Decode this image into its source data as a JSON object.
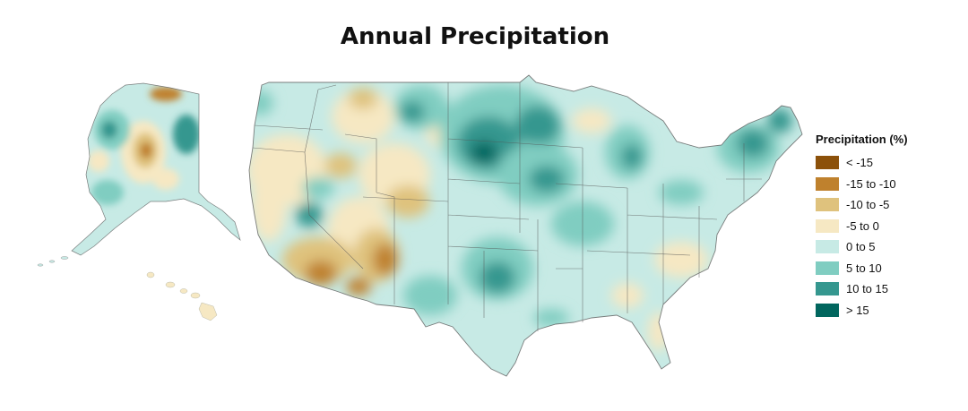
{
  "title": "Annual Precipitation",
  "legend": {
    "title": "Precipitation (%)",
    "items": [
      {
        "label": "< -15",
        "color": "#8c510a"
      },
      {
        "label": "-15 to -10",
        "color": "#bf812d"
      },
      {
        "label": "-10 to -5",
        "color": "#dfc27d"
      },
      {
        "label": "-5 to 0",
        "color": "#f6e8c3"
      },
      {
        "label": "0 to 5",
        "color": "#c7eae5"
      },
      {
        "label": "5 to 10",
        "color": "#80cdc1"
      },
      {
        "label": "10 to 15",
        "color": "#35978f"
      },
      {
        "label": "> 15",
        "color": "#01665e"
      }
    ]
  },
  "regions": [
    "Contiguous United States",
    "Alaska",
    "Hawaii"
  ]
}
